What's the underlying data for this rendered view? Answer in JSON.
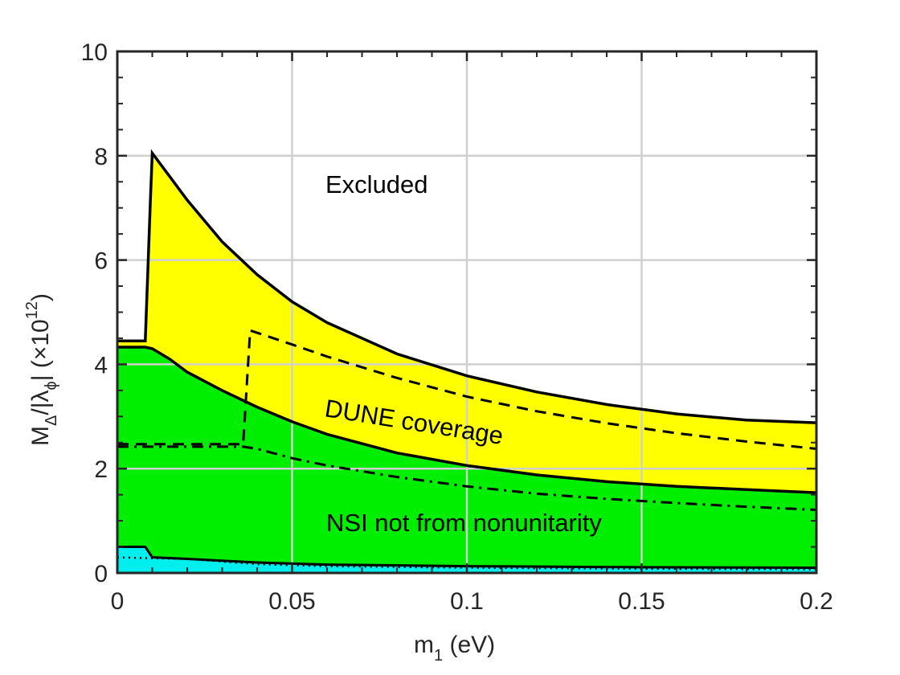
{
  "chart_data": {
    "type": "area",
    "xlabel": "m",
    "xlabel_sub": "1",
    "xlabel_unit": " (eV)",
    "ylabel": "M",
    "ylabel_sub_delta": "Δ",
    "ylabel_mid": "/|λ",
    "ylabel_sub_phi": "ϕ",
    "ylabel_tail": "|  (×10",
    "ylabel_sup": "12",
    "ylabel_close": ")",
    "xlim": [
      0,
      0.2
    ],
    "ylim": [
      0,
      10
    ],
    "xticks": [
      0,
      0.05,
      0.1,
      0.15,
      0.2
    ],
    "xtick_labels": [
      "0",
      "0.05",
      "0.1",
      "0.15",
      "0.2"
    ],
    "yticks": [
      0,
      2,
      4,
      6,
      8,
      10
    ],
    "ytick_labels": [
      "0",
      "2",
      "4",
      "6",
      "8",
      "10"
    ],
    "grid": true,
    "colors": {
      "yellow": "#ffff00",
      "green": "#00ee00",
      "cyan": "#00eeee",
      "line": "#000000",
      "grid": "#d0d0d0"
    },
    "annotations": {
      "excluded": "Excluded",
      "dune": "DUNE coverage",
      "nsi": "NSI not from nonunitarity"
    },
    "series": [
      {
        "role": "upper-bound-solid",
        "x": [
          0,
          0.008,
          0.0095,
          0.01,
          0.015,
          0.02,
          0.03,
          0.04,
          0.05,
          0.06,
          0.08,
          0.1,
          0.12,
          0.14,
          0.16,
          0.18,
          0.2
        ],
        "y": [
          4.45,
          4.45,
          7.2,
          8.05,
          7.6,
          7.15,
          6.35,
          5.72,
          5.2,
          4.8,
          4.2,
          3.78,
          3.47,
          3.23,
          3.05,
          2.93,
          2.88
        ]
      },
      {
        "role": "middle-boundary-solid",
        "x": [
          0,
          0.008,
          0.01,
          0.015,
          0.02,
          0.03,
          0.04,
          0.05,
          0.06,
          0.08,
          0.1,
          0.12,
          0.14,
          0.16,
          0.18,
          0.2
        ],
        "y": [
          4.33,
          4.33,
          4.3,
          4.1,
          3.85,
          3.5,
          3.18,
          2.9,
          2.66,
          2.3,
          2.06,
          1.88,
          1.75,
          1.66,
          1.6,
          1.54
        ]
      },
      {
        "role": "dashed",
        "x": [
          0,
          0.036,
          0.038,
          0.05,
          0.06,
          0.08,
          0.1,
          0.12,
          0.14,
          0.16,
          0.18,
          0.2
        ],
        "y": [
          2.47,
          2.47,
          4.65,
          4.38,
          4.15,
          3.74,
          3.38,
          3.1,
          2.87,
          2.68,
          2.52,
          2.38
        ]
      },
      {
        "role": "dash-dot",
        "x": [
          0,
          0.036,
          0.04,
          0.05,
          0.06,
          0.08,
          0.1,
          0.12,
          0.14,
          0.16,
          0.18,
          0.2
        ],
        "y": [
          2.42,
          2.42,
          2.38,
          2.2,
          2.06,
          1.84,
          1.66,
          1.52,
          1.42,
          1.34,
          1.27,
          1.21
        ]
      },
      {
        "role": "cyan-top",
        "x": [
          0,
          0.008,
          0.01,
          0.02,
          0.04,
          0.06,
          0.1,
          0.15,
          0.2
        ],
        "y": [
          0.5,
          0.5,
          0.3,
          0.27,
          0.2,
          0.16,
          0.13,
          0.11,
          0.1
        ]
      },
      {
        "role": "dotted",
        "x": [
          0,
          0.01,
          0.02,
          0.04,
          0.06,
          0.1,
          0.15,
          0.2
        ],
        "y": [
          0.3,
          0.28,
          0.27,
          0.17,
          0.13,
          0.1,
          0.08,
          0.07
        ]
      }
    ]
  }
}
